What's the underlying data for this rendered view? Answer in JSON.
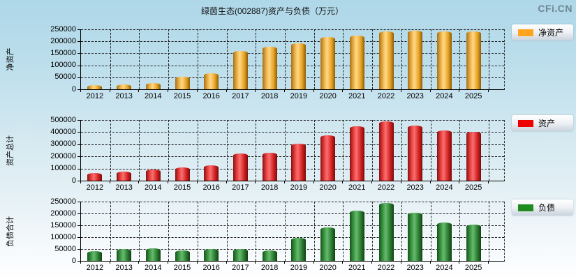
{
  "page": {
    "title": "绿茵生态(002887)资产与负债（万元）",
    "logo": "CFi.CN",
    "colors": {
      "background_top": "#aed7e8",
      "background_bottom": "#ffffff",
      "net_assets_bar": "#ffa41c",
      "assets_bar": "#ee0000",
      "liabilities_bar": "#1f8c1f",
      "grid_line": "#222222",
      "logo_text": "#6f8692"
    }
  },
  "chart_data": [
    {
      "type": "bar",
      "title": "净资产",
      "ylabel": "净资产",
      "legend": "净资产",
      "legend_position": "right",
      "grid": true,
      "color_key": "gold",
      "color_hex": "#ffa41c",
      "ylim": [
        0,
        250000
      ],
      "yticks": [
        0,
        50000,
        100000,
        150000,
        200000,
        250000
      ],
      "categories": [
        "2012",
        "2013",
        "2014",
        "2015",
        "2016",
        "2017",
        "2018",
        "2019",
        "2020",
        "2021",
        "2022",
        "2023",
        "2024",
        "2025"
      ],
      "values": [
        16000,
        21000,
        27000,
        52000,
        68000,
        161000,
        177000,
        191000,
        218000,
        225000,
        242000,
        243000,
        242000,
        241000
      ]
    },
    {
      "type": "bar",
      "title": "资产总计",
      "ylabel": "资产总计",
      "legend": "资产",
      "legend_position": "right",
      "grid": true,
      "color_key": "red",
      "color_hex": "#ee0000",
      "ylim": [
        0,
        500000
      ],
      "yticks": [
        0,
        100000,
        200000,
        300000,
        400000,
        500000
      ],
      "categories": [
        "2012",
        "2013",
        "2014",
        "2015",
        "2016",
        "2017",
        "2018",
        "2019",
        "2020",
        "2021",
        "2022",
        "2023",
        "2024",
        "2025"
      ],
      "values": [
        65000,
        77000,
        90000,
        108000,
        128000,
        222000,
        230000,
        305000,
        376000,
        447000,
        491000,
        452000,
        412000,
        402000
      ]
    },
    {
      "type": "bar",
      "title": "负债合计",
      "ylabel": "负债合计",
      "legend": "负债",
      "legend_position": "right",
      "grid": true,
      "color_key": "green",
      "color_hex": "#1f8c1f",
      "ylim": [
        0,
        250000
      ],
      "yticks": [
        0,
        50000,
        100000,
        150000,
        200000,
        250000
      ],
      "categories": [
        "2012",
        "2013",
        "2014",
        "2015",
        "2016",
        "2017",
        "2018",
        "2019",
        "2020",
        "2021",
        "2022",
        "2023",
        "2024",
        "2025"
      ],
      "values": [
        42000,
        49000,
        52000,
        44000,
        51000,
        51000,
        44000,
        98000,
        141000,
        213000,
        245000,
        202000,
        163000,
        152000
      ]
    }
  ]
}
